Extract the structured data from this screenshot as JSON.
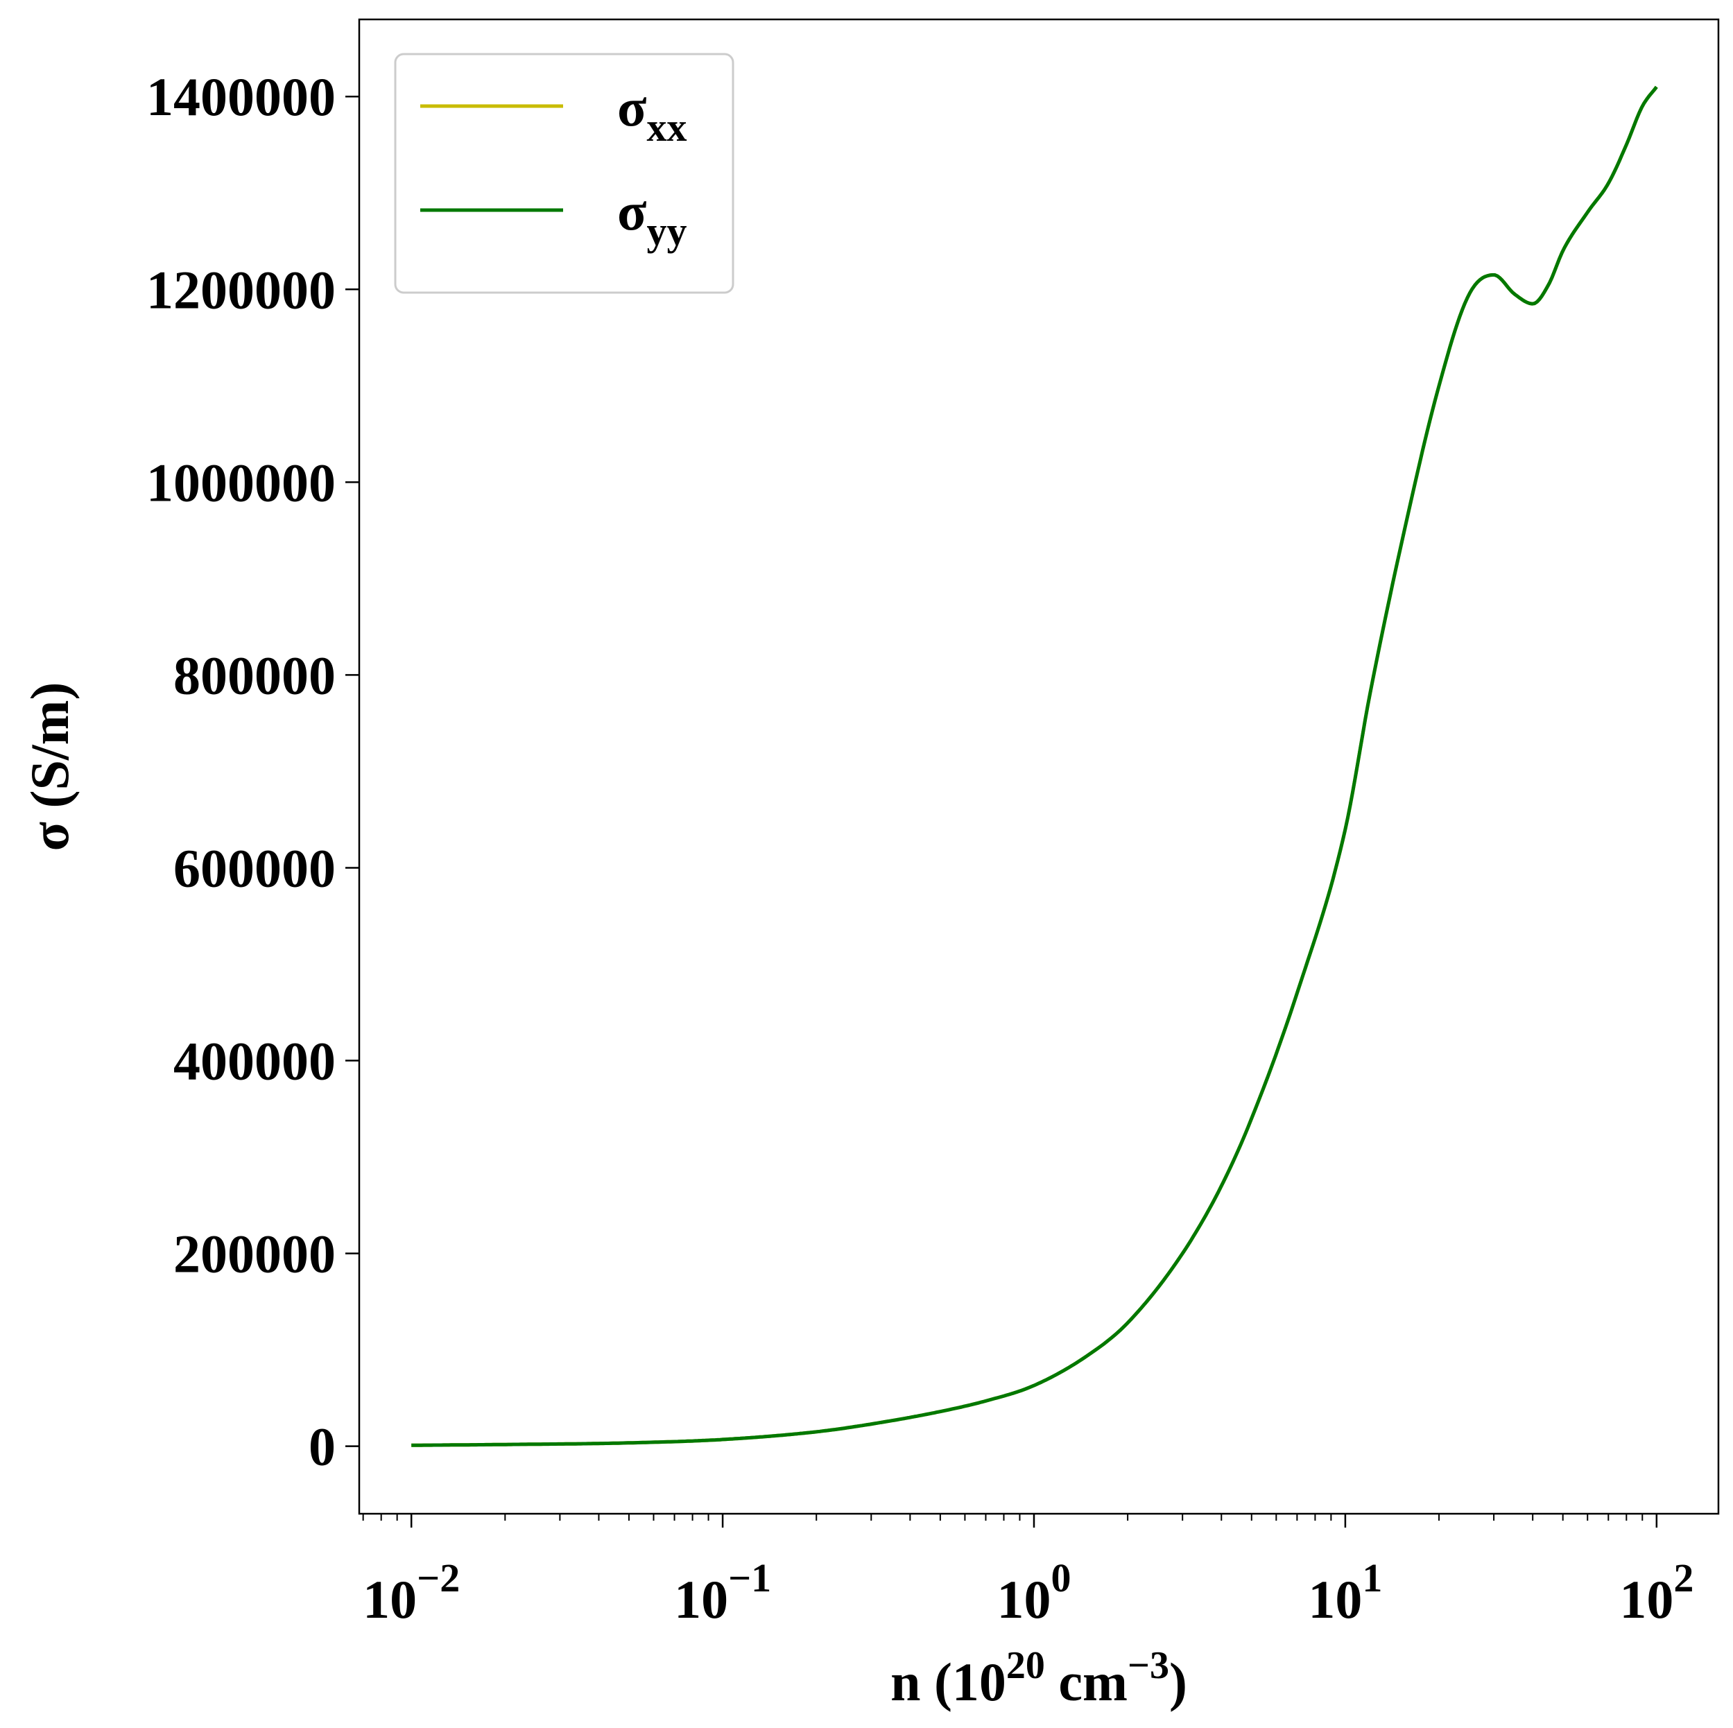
{
  "chart_data": {
    "type": "line",
    "title": "",
    "xlabel": {
      "base": "n (10",
      "exp": "20",
      "middle": " cm",
      "exp2": "−3",
      "end": ")"
    },
    "ylabel": "σ (S/m)",
    "xscale": "log",
    "xlim": [
      0.0068,
      158
    ],
    "ylim": [
      -70000,
      1480000
    ],
    "grid": false,
    "legend_position": "upper-left",
    "x_ticks": [
      {
        "value": 0.01,
        "base": "10",
        "exp": "−2"
      },
      {
        "value": 0.1,
        "base": "10",
        "exp": "−1"
      },
      {
        "value": 1,
        "base": "10",
        "exp": "0"
      },
      {
        "value": 10,
        "base": "10",
        "exp": "1"
      },
      {
        "value": 100,
        "base": "10",
        "exp": "2"
      }
    ],
    "y_ticks": [
      {
        "value": 0,
        "label": "0"
      },
      {
        "value": 200000,
        "label": "200000"
      },
      {
        "value": 400000,
        "label": "400000"
      },
      {
        "value": 600000,
        "label": "600000"
      },
      {
        "value": 800000,
        "label": "800000"
      },
      {
        "value": 1000000,
        "label": "1000000"
      },
      {
        "value": 1200000,
        "label": "1200000"
      },
      {
        "value": 1400000,
        "label": "1400000"
      }
    ],
    "series": [
      {
        "name": "σxx",
        "label_main": "σ",
        "label_sub": "xx",
        "color": "#c8bc00",
        "x": [
          0.01,
          0.02,
          0.05,
          0.1,
          0.2,
          0.3,
          0.5,
          0.7,
          1.0,
          1.5,
          2.0,
          3.0,
          4.0,
          5.0,
          7.0,
          10.0,
          12.0,
          15.0,
          20.0,
          25.0,
          30.0,
          35.0,
          40.0,
          45.0,
          50.0,
          60.0,
          70.0,
          80.0,
          90.0,
          100.0
        ],
        "y": [
          1000,
          1800,
          3500,
          7000,
          15000,
          23000,
          36000,
          47000,
          63000,
          95000,
          128000,
          200000,
          270000,
          340000,
          470000,
          640000,
          780000,
          930000,
          1100000,
          1195000,
          1215000,
          1195000,
          1185000,
          1205000,
          1240000,
          1280000,
          1310000,
          1350000,
          1390000,
          1410000
        ]
      },
      {
        "name": "σyy",
        "label_main": "σ",
        "label_sub": "yy",
        "color": "#007800",
        "x": [
          0.01,
          0.02,
          0.05,
          0.1,
          0.2,
          0.3,
          0.5,
          0.7,
          1.0,
          1.5,
          2.0,
          3.0,
          4.0,
          5.0,
          7.0,
          10.0,
          12.0,
          15.0,
          20.0,
          25.0,
          30.0,
          35.0,
          40.0,
          45.0,
          50.0,
          60.0,
          70.0,
          80.0,
          90.0,
          100.0
        ],
        "y": [
          1000,
          1800,
          3500,
          7000,
          15000,
          23000,
          36000,
          47000,
          63000,
          95000,
          128000,
          200000,
          270000,
          340000,
          470000,
          640000,
          780000,
          930000,
          1100000,
          1195000,
          1215000,
          1195000,
          1185000,
          1205000,
          1240000,
          1280000,
          1310000,
          1350000,
          1390000,
          1410000
        ]
      }
    ]
  }
}
